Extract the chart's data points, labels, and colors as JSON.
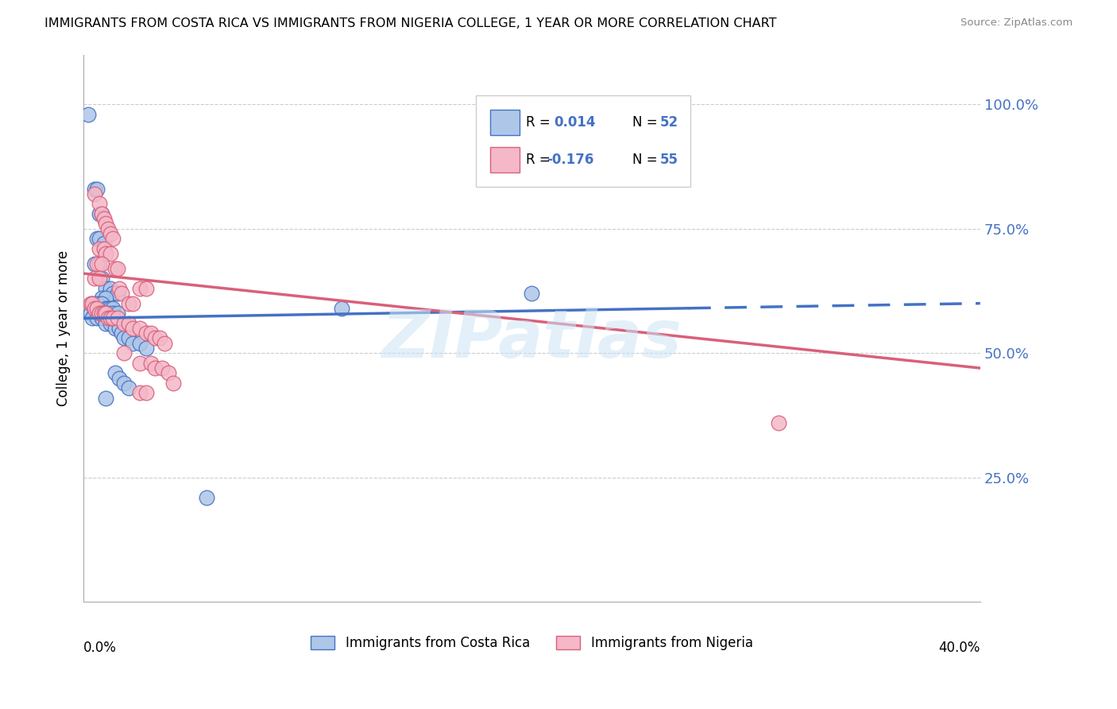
{
  "title": "IMMIGRANTS FROM COSTA RICA VS IMMIGRANTS FROM NIGERIA COLLEGE, 1 YEAR OR MORE CORRELATION CHART",
  "source": "Source: ZipAtlas.com",
  "ylabel": "College, 1 year or more",
  "xlim": [
    0.0,
    0.4
  ],
  "ylim": [
    0.0,
    1.1
  ],
  "y_ticks": [
    0.25,
    0.5,
    0.75,
    1.0
  ],
  "y_tick_labels": [
    "25.0%",
    "50.0%",
    "75.0%",
    "100.0%"
  ],
  "x_ticks": [
    0.0,
    0.1,
    0.2,
    0.3,
    0.4
  ],
  "color_blue": "#aec6e8",
  "color_pink": "#f4b8c8",
  "line_color_blue": "#4472c4",
  "line_color_pink": "#d9607a",
  "watermark": "ZIPatlas",
  "blue_points": [
    [
      0.002,
      0.98
    ],
    [
      0.005,
      0.83
    ],
    [
      0.006,
      0.83
    ],
    [
      0.007,
      0.78
    ],
    [
      0.008,
      0.78
    ],
    [
      0.006,
      0.73
    ],
    [
      0.007,
      0.73
    ],
    [
      0.009,
      0.72
    ],
    [
      0.005,
      0.68
    ],
    [
      0.007,
      0.68
    ],
    [
      0.008,
      0.65
    ],
    [
      0.01,
      0.63
    ],
    [
      0.012,
      0.63
    ],
    [
      0.013,
      0.62
    ],
    [
      0.015,
      0.62
    ],
    [
      0.008,
      0.61
    ],
    [
      0.01,
      0.61
    ],
    [
      0.004,
      0.6
    ],
    [
      0.006,
      0.6
    ],
    [
      0.008,
      0.6
    ],
    [
      0.01,
      0.59
    ],
    [
      0.011,
      0.59
    ],
    [
      0.012,
      0.59
    ],
    [
      0.013,
      0.59
    ],
    [
      0.003,
      0.58
    ],
    [
      0.005,
      0.58
    ],
    [
      0.007,
      0.58
    ],
    [
      0.009,
      0.58
    ],
    [
      0.011,
      0.58
    ],
    [
      0.013,
      0.58
    ],
    [
      0.015,
      0.58
    ],
    [
      0.004,
      0.57
    ],
    [
      0.006,
      0.57
    ],
    [
      0.008,
      0.57
    ],
    [
      0.01,
      0.56
    ],
    [
      0.012,
      0.56
    ],
    [
      0.014,
      0.55
    ],
    [
      0.016,
      0.55
    ],
    [
      0.017,
      0.54
    ],
    [
      0.018,
      0.53
    ],
    [
      0.02,
      0.53
    ],
    [
      0.022,
      0.52
    ],
    [
      0.025,
      0.52
    ],
    [
      0.028,
      0.51
    ],
    [
      0.115,
      0.59
    ],
    [
      0.2,
      0.62
    ],
    [
      0.014,
      0.46
    ],
    [
      0.016,
      0.45
    ],
    [
      0.018,
      0.44
    ],
    [
      0.02,
      0.43
    ],
    [
      0.01,
      0.41
    ],
    [
      0.055,
      0.21
    ]
  ],
  "pink_points": [
    [
      0.005,
      0.82
    ],
    [
      0.007,
      0.8
    ],
    [
      0.008,
      0.78
    ],
    [
      0.009,
      0.77
    ],
    [
      0.01,
      0.76
    ],
    [
      0.011,
      0.75
    ],
    [
      0.012,
      0.74
    ],
    [
      0.013,
      0.73
    ],
    [
      0.007,
      0.71
    ],
    [
      0.009,
      0.71
    ],
    [
      0.01,
      0.7
    ],
    [
      0.012,
      0.7
    ],
    [
      0.006,
      0.68
    ],
    [
      0.008,
      0.68
    ],
    [
      0.014,
      0.67
    ],
    [
      0.015,
      0.67
    ],
    [
      0.005,
      0.65
    ],
    [
      0.007,
      0.65
    ],
    [
      0.016,
      0.63
    ],
    [
      0.017,
      0.62
    ],
    [
      0.003,
      0.6
    ],
    [
      0.004,
      0.6
    ],
    [
      0.005,
      0.59
    ],
    [
      0.006,
      0.59
    ],
    [
      0.007,
      0.58
    ],
    [
      0.008,
      0.58
    ],
    [
      0.009,
      0.58
    ],
    [
      0.01,
      0.58
    ],
    [
      0.011,
      0.57
    ],
    [
      0.012,
      0.57
    ],
    [
      0.013,
      0.57
    ],
    [
      0.015,
      0.57
    ],
    [
      0.018,
      0.56
    ],
    [
      0.02,
      0.56
    ],
    [
      0.022,
      0.55
    ],
    [
      0.025,
      0.55
    ],
    [
      0.028,
      0.54
    ],
    [
      0.03,
      0.54
    ],
    [
      0.032,
      0.53
    ],
    [
      0.034,
      0.53
    ],
    [
      0.036,
      0.52
    ],
    [
      0.02,
      0.6
    ],
    [
      0.022,
      0.6
    ],
    [
      0.025,
      0.63
    ],
    [
      0.028,
      0.63
    ],
    [
      0.018,
      0.5
    ],
    [
      0.025,
      0.48
    ],
    [
      0.03,
      0.48
    ],
    [
      0.032,
      0.47
    ],
    [
      0.035,
      0.47
    ],
    [
      0.038,
      0.46
    ],
    [
      0.04,
      0.44
    ],
    [
      0.31,
      0.36
    ],
    [
      0.025,
      0.42
    ],
    [
      0.028,
      0.42
    ]
  ],
  "blue_line": {
    "x0": 0.0,
    "y0": 0.57,
    "x1": 0.4,
    "y1": 0.6
  },
  "blue_line_solid_end": 0.27,
  "pink_line": {
    "x0": 0.0,
    "y0": 0.66,
    "x1": 0.4,
    "y1": 0.47
  }
}
